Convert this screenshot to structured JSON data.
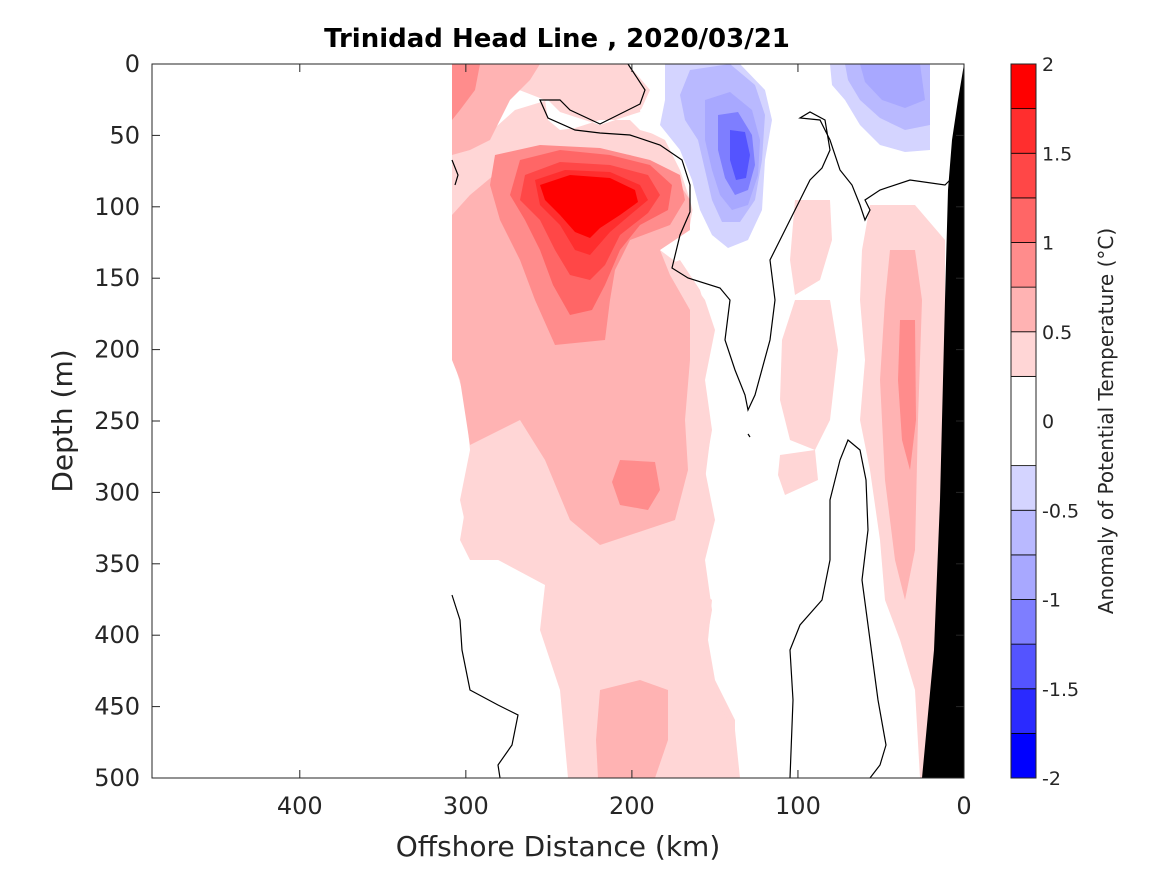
{
  "chart_data": {
    "type": "heatmap",
    "title": "Trinidad Head Line , 2020/03/21",
    "xlabel": "Offshore Distance (km)",
    "ylabel": "Depth (m)",
    "colorbar_label": "Anomaly of Potential Temperature (°C)",
    "xlim": [
      489,
      0
    ],
    "x_reversed": true,
    "ylim": [
      500,
      0
    ],
    "y_reversed": true,
    "x_ticks": [
      400,
      300,
      200,
      100,
      0
    ],
    "y_ticks": [
      0,
      50,
      100,
      150,
      200,
      250,
      300,
      350,
      400,
      450,
      500
    ],
    "colorbar_ticks": [
      2,
      1.5,
      1,
      0.5,
      0,
      -0.5,
      -1,
      -1.5,
      -2
    ],
    "colorbar_levels": [
      -2,
      -1.75,
      -1.5,
      -1.25,
      -1,
      -0.75,
      -0.5,
      -0.25,
      0.25,
      0.5,
      0.75,
      1,
      1.25,
      1.5,
      1.75,
      2
    ],
    "colorbar_colors": [
      "#0000ff",
      "#2a2aff",
      "#5454ff",
      "#7e7eff",
      "#a8a8ff",
      "#b9b9ff",
      "#d4d4ff",
      "#ffffff",
      "#ffd6d6",
      "#ffb3b3",
      "#ff8c8c",
      "#ff6666",
      "#ff4747",
      "#ff2e2e",
      "#ff0000"
    ],
    "contour_level": 0,
    "features": [
      {
        "kind": "warm_core",
        "x_km": 230,
        "depth_m": 100,
        "anomaly": 2.0
      },
      {
        "kind": "cold_core",
        "x_km": 135,
        "depth_m": 65,
        "anomaly": -1.5
      },
      {
        "kind": "cold_surface",
        "x_km": 55,
        "depth_m": 10,
        "anomaly": -1.0
      },
      {
        "kind": "warm_surface",
        "x_km": 300,
        "depth_m": 30,
        "anomaly": 1.0
      },
      {
        "kind": "warm_nearshore",
        "x_km": 30,
        "depth_m": 280,
        "anomaly": 0.75
      }
    ],
    "data_extent_km": [
      310,
      0
    ],
    "bathymetry": "seafloor wedge near 0 km, shown in black",
    "grid": false
  }
}
